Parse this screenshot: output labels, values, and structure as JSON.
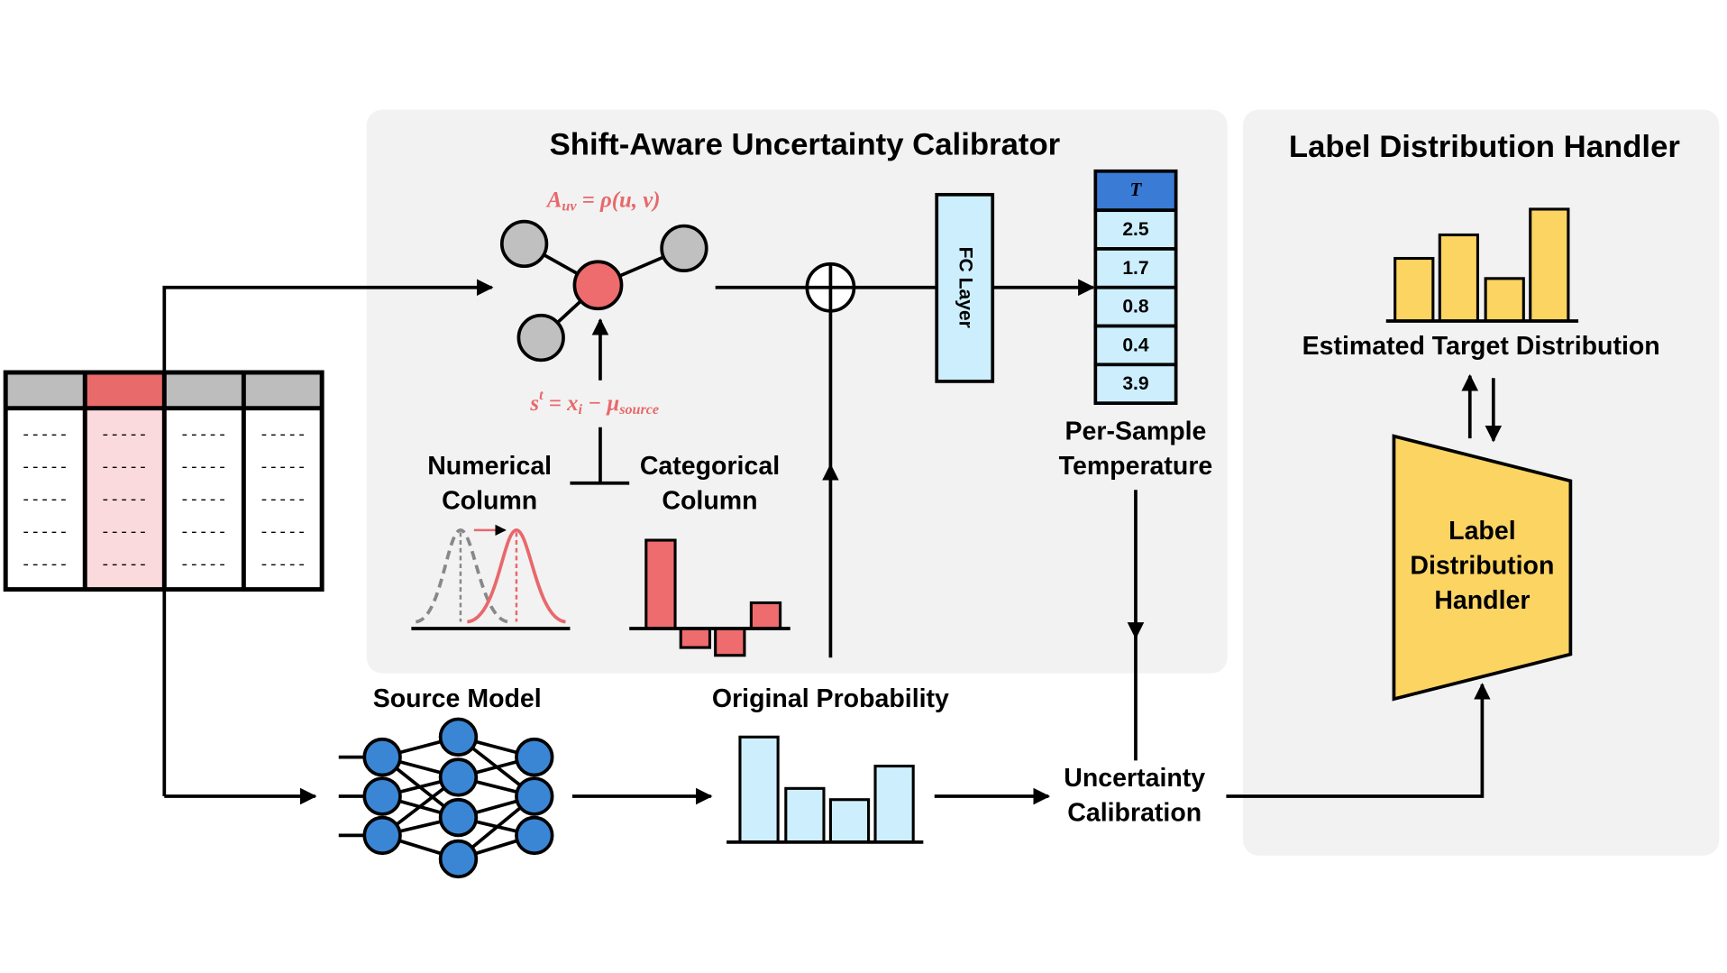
{
  "calibrator": {
    "title": "Shift-Aware Uncertainty Calibrator",
    "adjacency_formula": {
      "base": "A",
      "sub": "uv",
      "rest": " = ρ(u, v)"
    },
    "shift_formula": {
      "base": "s",
      "sup": "t",
      "mid": " =  x",
      "sub": "i",
      "minus": " − μ",
      "sub2": "source"
    },
    "numerical_column": [
      "Numerical",
      "Column"
    ],
    "categorical_column": [
      "Categorical",
      "Column"
    ],
    "fc_layer": "FC Layer",
    "temperature_header": "T",
    "temperatures": [
      "2.5",
      "1.7",
      "0.8",
      "0.4",
      "3.9"
    ],
    "temperature_label": [
      "Per-Sample",
      "Temperature"
    ]
  },
  "handler": {
    "title": "Label Distribution Handler",
    "estimated_label": "Estimated Target Distribution",
    "block_label": [
      "Label",
      "Distribution",
      "Handler"
    ]
  },
  "pipeline": {
    "source_model": "Source Model",
    "original_probability": "Original Probability",
    "uncertainty_calibration": [
      "Uncertainty",
      "Calibration"
    ]
  },
  "table": {
    "cell": "-----"
  }
}
